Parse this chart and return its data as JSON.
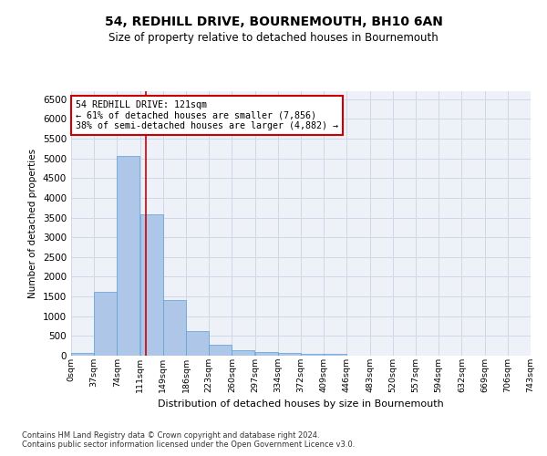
{
  "title": "54, REDHILL DRIVE, BOURNEMOUTH, BH10 6AN",
  "subtitle": "Size of property relative to detached houses in Bournemouth",
  "xlabel": "Distribution of detached houses by size in Bournemouth",
  "ylabel": "Number of detached properties",
  "footnote1": "Contains HM Land Registry data © Crown copyright and database right 2024.",
  "footnote2": "Contains public sector information licensed under the Open Government Licence v3.0.",
  "bin_labels": [
    "0sqm",
    "37sqm",
    "74sqm",
    "111sqm",
    "149sqm",
    "186sqm",
    "223sqm",
    "260sqm",
    "297sqm",
    "334sqm",
    "372sqm",
    "409sqm",
    "446sqm",
    "483sqm",
    "520sqm",
    "557sqm",
    "594sqm",
    "632sqm",
    "669sqm",
    "706sqm",
    "743sqm"
  ],
  "bar_values": [
    75,
    1625,
    5060,
    3570,
    1410,
    620,
    285,
    140,
    90,
    65,
    50,
    50,
    0,
    0,
    0,
    0,
    0,
    0,
    0,
    0
  ],
  "bar_color": "#aec6e8",
  "bar_edge_color": "#5a9fd4",
  "vline_x": 121,
  "vline_color": "#cc0000",
  "annotation_line1": "54 REDHILL DRIVE: 121sqm",
  "annotation_line2": "← 61% of detached houses are smaller (7,856)",
  "annotation_line3": "38% of semi-detached houses are larger (4,882) →",
  "annotation_box_color": "#cc0000",
  "ylim": [
    0,
    6700
  ],
  "yticks": [
    0,
    500,
    1000,
    1500,
    2000,
    2500,
    3000,
    3500,
    4000,
    4500,
    5000,
    5500,
    6000,
    6500
  ],
  "grid_color": "#d0d8e8",
  "background_color": "#eef2f8",
  "bin_width": 37
}
